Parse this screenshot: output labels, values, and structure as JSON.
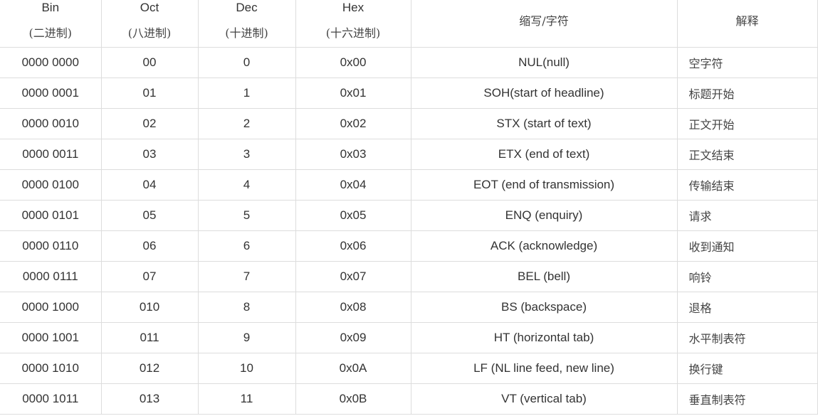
{
  "table": {
    "headers": {
      "bin": {
        "en": "Bin",
        "cn": "(二进制)"
      },
      "oct": {
        "en": "Oct",
        "cn": "(八进制)"
      },
      "dec": {
        "en": "Dec",
        "cn": "(十进制)"
      },
      "hex": {
        "en": "Hex",
        "cn": "(十六进制)"
      },
      "abbr": "缩写/字符",
      "desc": "解释"
    },
    "rows": [
      {
        "bin": "0000 0000",
        "oct": "00",
        "dec": "0",
        "hex": "0x00",
        "abbr": "NUL(null)",
        "desc": "空字符"
      },
      {
        "bin": "0000 0001",
        "oct": "01",
        "dec": "1",
        "hex": "0x01",
        "abbr": "SOH(start of headline)",
        "desc": "标题开始"
      },
      {
        "bin": "0000 0010",
        "oct": "02",
        "dec": "2",
        "hex": "0x02",
        "abbr": "STX (start of text)",
        "desc": "正文开始"
      },
      {
        "bin": "0000 0011",
        "oct": "03",
        "dec": "3",
        "hex": "0x03",
        "abbr": "ETX (end of text)",
        "desc": "正文结束"
      },
      {
        "bin": "0000 0100",
        "oct": "04",
        "dec": "4",
        "hex": "0x04",
        "abbr": "EOT (end of transmission)",
        "desc": "传输结束"
      },
      {
        "bin": "0000 0101",
        "oct": "05",
        "dec": "5",
        "hex": "0x05",
        "abbr": "ENQ (enquiry)",
        "desc": "请求"
      },
      {
        "bin": "0000 0110",
        "oct": "06",
        "dec": "6",
        "hex": "0x06",
        "abbr": "ACK (acknowledge)",
        "desc": "收到通知"
      },
      {
        "bin": "0000 0111",
        "oct": "07",
        "dec": "7",
        "hex": "0x07",
        "abbr": "BEL (bell)",
        "desc": "响铃"
      },
      {
        "bin": "0000 1000",
        "oct": "010",
        "dec": "8",
        "hex": "0x08",
        "abbr": "BS (backspace)",
        "desc": "退格"
      },
      {
        "bin": "0000 1001",
        "oct": "011",
        "dec": "9",
        "hex": "0x09",
        "abbr": "HT (horizontal tab)",
        "desc": "水平制表符"
      },
      {
        "bin": "0000 1010",
        "oct": "012",
        "dec": "10",
        "hex": "0x0A",
        "abbr": "LF (NL line feed, new line)",
        "desc": "换行键"
      },
      {
        "bin": "0000 1011",
        "oct": "013",
        "dec": "11",
        "hex": "0x0B",
        "abbr": "VT (vertical tab)",
        "desc": "垂直制表符"
      }
    ]
  }
}
